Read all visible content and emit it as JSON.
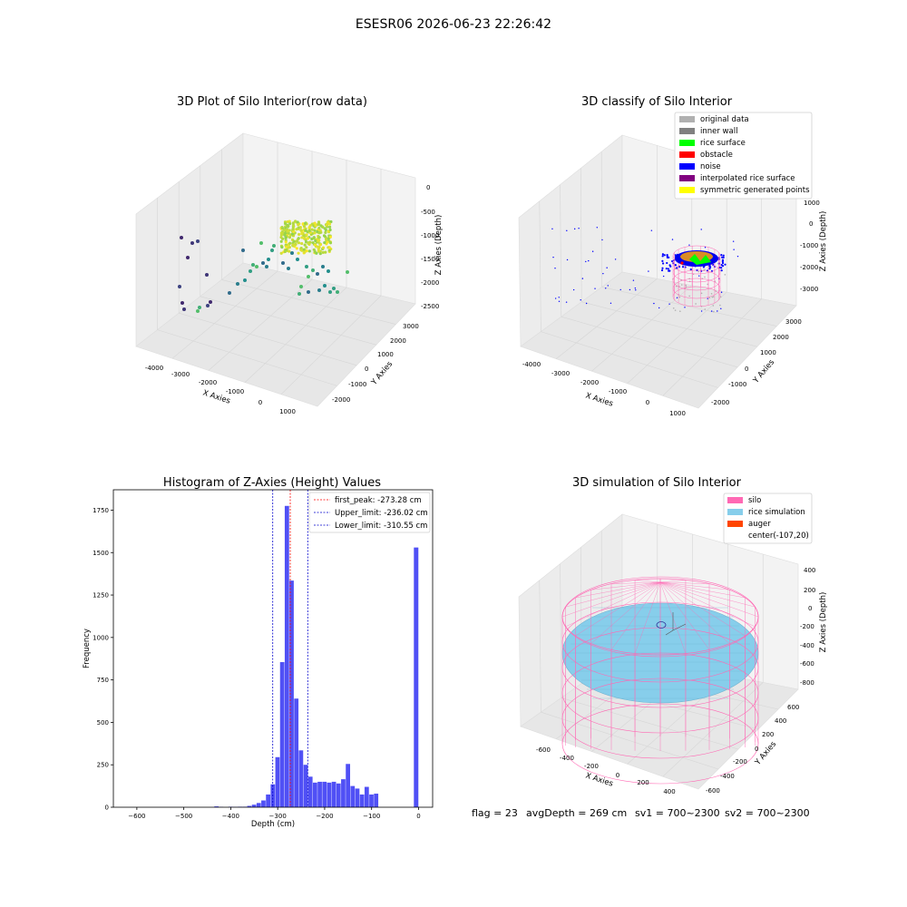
{
  "figure_title": "ESESR06 2026-06-23 22:26:42",
  "footer": {
    "flag": "flag = 23",
    "avg_depth": "avgDepth = 269 cm",
    "sv1": "sv1 = 700~2300",
    "sv2": "sv2 = 700~2300"
  },
  "colors": {
    "histogram": "#5050f5",
    "peak_line": "#ff0000",
    "limit_line": "#0000cc",
    "silo": "#ff69b4",
    "rice_simulation": "#87ceeb",
    "auger": "#ff4500",
    "original": "#b0b0b0",
    "inner_wall": "#808080",
    "rice_surface": "#00ff00",
    "obstacle": "#ff0000",
    "noise": "#0000ff",
    "interpolated": "#800080",
    "symmetric": "#ffff00"
  },
  "chart_data": [
    {
      "type": "scatter",
      "title": "3D Plot of Silo Interior(row data)",
      "xlabel": "X Axies",
      "ylabel": "Y Axies",
      "zlabel": "Z Axies (Depth)",
      "x_ticks": [
        "-4000",
        "-3000",
        "-2000",
        "-1000",
        "0",
        "1000"
      ],
      "y_ticks": [
        "-2000",
        "-1000",
        "0",
        "1000",
        "2000",
        "3000"
      ],
      "z_ticks": [
        "0",
        "-500",
        "-1000",
        "-1500",
        "-2000",
        "-2500"
      ],
      "colormap": "viridis"
    },
    {
      "type": "scatter",
      "title": "3D classify of Silo Interior",
      "xlabel": "X Axies",
      "ylabel": "Y Axies",
      "zlabel": "Z Axies (Depth)",
      "x_ticks": [
        "-4000",
        "-3000",
        "-2000",
        "-1000",
        "0",
        "1000"
      ],
      "y_ticks": [
        "-2000",
        "-1000",
        "0",
        "1000",
        "2000",
        "3000"
      ],
      "z_ticks": [
        "1000",
        "0",
        "-1000",
        "-2000",
        "-3000"
      ],
      "legend": [
        "original data",
        "inner wall",
        "rice surface",
        "obstacle",
        "noise",
        "interpolated rice surface",
        "symmetric generated points"
      ],
      "legend_position": "top-right"
    },
    {
      "type": "bar",
      "title": "Histogram of Z-Axies (Height) Values",
      "xlabel": "Depth (cm)",
      "ylabel": "Frequency",
      "xlim": [
        -650,
        30
      ],
      "ylim": [
        0,
        1870
      ],
      "x_ticks": [
        -600,
        -500,
        -400,
        -300,
        -200,
        -100,
        0
      ],
      "y_ticks": [
        0,
        250,
        500,
        750,
        1000,
        1250,
        1500,
        1750
      ],
      "bin_width": 9.6,
      "bins": [
        {
          "x": -435,
          "y": 5
        },
        {
          "x": -425,
          "y": 2
        },
        {
          "x": -415,
          "y": 0
        },
        {
          "x": -405,
          "y": 3
        },
        {
          "x": -395,
          "y": 2
        },
        {
          "x": -385,
          "y": 3
        },
        {
          "x": -375,
          "y": 3
        },
        {
          "x": -365,
          "y": 8
        },
        {
          "x": -355,
          "y": 15
        },
        {
          "x": -345,
          "y": 25
        },
        {
          "x": -335,
          "y": 40
        },
        {
          "x": -325,
          "y": 75
        },
        {
          "x": -315,
          "y": 135
        },
        {
          "x": -305,
          "y": 295
        },
        {
          "x": -295,
          "y": 855
        },
        {
          "x": -285,
          "y": 1775
        },
        {
          "x": -275,
          "y": 1335
        },
        {
          "x": -265,
          "y": 640
        },
        {
          "x": -255,
          "y": 335
        },
        {
          "x": -245,
          "y": 250
        },
        {
          "x": -235,
          "y": 180
        },
        {
          "x": -225,
          "y": 145
        },
        {
          "x": -215,
          "y": 150
        },
        {
          "x": -205,
          "y": 150
        },
        {
          "x": -195,
          "y": 145
        },
        {
          "x": -185,
          "y": 150
        },
        {
          "x": -175,
          "y": 140
        },
        {
          "x": -165,
          "y": 165
        },
        {
          "x": -155,
          "y": 255
        },
        {
          "x": -145,
          "y": 125
        },
        {
          "x": -135,
          "y": 110
        },
        {
          "x": -125,
          "y": 75
        },
        {
          "x": -115,
          "y": 120
        },
        {
          "x": -105,
          "y": 75
        },
        {
          "x": -95,
          "y": 80
        },
        {
          "x": -85,
          "y": 1530
        }
      ],
      "lines": [
        {
          "label": "first_peak: -273.28 cm",
          "x": -273.28,
          "style": "peak"
        },
        {
          "label": "Upper_limit: -236.02 cm",
          "x": -236.02,
          "style": "limit"
        },
        {
          "label": "Lower_limit: -310.55 cm",
          "x": -310.55,
          "style": "limit"
        }
      ],
      "legend_position": "top-right"
    },
    {
      "type": "scatter",
      "title": "3D simulation of Silo Interior",
      "xlabel": "X Axies",
      "ylabel": "Y Axies",
      "zlabel": "Z Axies (Depth)",
      "x_ticks": [
        "-600",
        "-400",
        "-200",
        "0",
        "200",
        "400"
      ],
      "y_ticks": [
        "-600",
        "-400",
        "-200",
        "0",
        "200",
        "400",
        "600"
      ],
      "z_ticks": [
        "400",
        "200",
        "0",
        "-200",
        "-400",
        "-600",
        "-800"
      ],
      "legend": [
        "silo",
        "rice simulation",
        "auger",
        "center(-107,20)"
      ],
      "legend_position": "top-right"
    }
  ]
}
